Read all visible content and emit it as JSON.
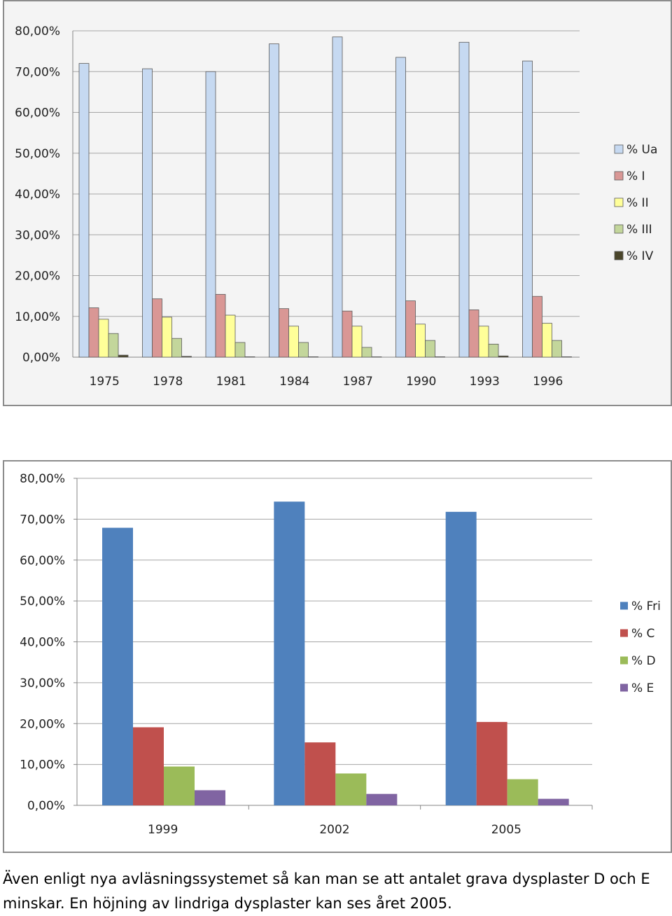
{
  "chart_data": [
    {
      "type": "bar",
      "categories": [
        "1975",
        "1978",
        "1981",
        "1984",
        "1987",
        "1990",
        "1993",
        "1996"
      ],
      "series": [
        {
          "name": "% Ua",
          "color": "#c6d9f1",
          "values": [
            72.0,
            70.7,
            70.0,
            76.8,
            78.5,
            73.5,
            77.2,
            72.6
          ]
        },
        {
          "name": "% I",
          "color": "#d99795",
          "values": [
            12.1,
            14.3,
            15.4,
            11.9,
            11.3,
            13.8,
            11.6,
            14.9
          ]
        },
        {
          "name": "% II",
          "color": "#ffff99",
          "values": [
            9.3,
            9.8,
            10.3,
            7.6,
            7.6,
            8.1,
            7.6,
            8.3
          ]
        },
        {
          "name": "% III",
          "color": "#c3d69b",
          "values": [
            5.8,
            4.6,
            3.6,
            3.6,
            2.4,
            4.1,
            3.2,
            4.1
          ]
        },
        {
          "name": "% IV",
          "color": "#4a452a",
          "values": [
            0.5,
            0.2,
            0.1,
            0.1,
            0.0,
            0.1,
            0.3,
            0.1
          ]
        }
      ],
      "ylim": [
        0,
        80
      ],
      "yticks": [
        "0,00%",
        "10,00%",
        "20,00%",
        "30,00%",
        "40,00%",
        "50,00%",
        "60,00%",
        "70,00%",
        "80,00%"
      ],
      "grid": true,
      "legend": "right"
    },
    {
      "type": "bar",
      "categories": [
        "1999",
        "2002",
        "2005"
      ],
      "series": [
        {
          "name": "% Fri",
          "color": "#4f81bd",
          "values": [
            67.9,
            74.3,
            71.8
          ]
        },
        {
          "name": "% C",
          "color": "#c0504d",
          "values": [
            19.1,
            15.4,
            20.4
          ]
        },
        {
          "name": "% D",
          "color": "#9bbb59",
          "values": [
            9.5,
            7.8,
            6.4
          ]
        },
        {
          "name": "% E",
          "color": "#8064a2",
          "values": [
            3.7,
            2.8,
            1.6
          ]
        }
      ],
      "ylim": [
        0,
        80
      ],
      "yticks": [
        "0,00%",
        "10,00%",
        "20,00%",
        "30,00%",
        "40,00%",
        "50,00%",
        "60,00%",
        "70,00%",
        "80,00%"
      ],
      "grid": true,
      "legend": "right"
    }
  ],
  "caption": {
    "line1": "Även enligt nya avläsningssystemet så kan man se att antalet grava dysplaster D och E",
    "line2": "minskar. En höjning av lindriga dysplaster kan ses året 2005."
  }
}
